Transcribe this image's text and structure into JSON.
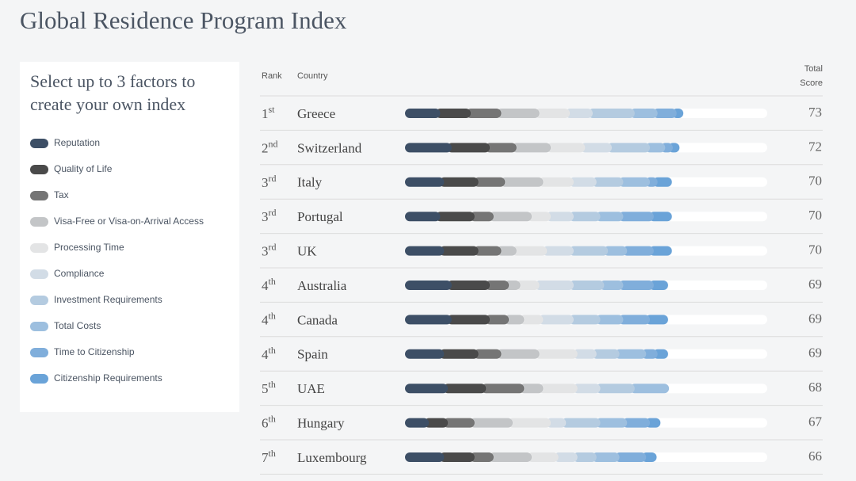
{
  "chart_data": {
    "type": "bar",
    "orientation": "horizontal",
    "stacked": true,
    "title": "Global Residence Program Index",
    "panel_title": "Select up to 3 factors to create your own index",
    "columns": {
      "rank": "Rank",
      "country": "Country",
      "total": [
        "Total",
        "Score"
      ]
    },
    "categories": [
      "Greece",
      "Switzerland",
      "Italy",
      "Portugal",
      "UK",
      "Australia",
      "Canada",
      "Spain",
      "UAE",
      "Hungary",
      "Luxembourg"
    ],
    "ranks": [
      "1st",
      "2nd",
      "3rd",
      "3rd",
      "3rd",
      "4th",
      "4th",
      "4th",
      "5th",
      "6th",
      "7th"
    ],
    "totals": [
      73,
      72,
      70,
      70,
      70,
      69,
      69,
      69,
      68,
      67,
      66
    ],
    "xlim": [
      0,
      95
    ],
    "series": [
      {
        "name": "Reputation",
        "color": "#3d4f66",
        "values": [
          8,
          11,
          9,
          8,
          9,
          11,
          11,
          9,
          10,
          5,
          9
        ]
      },
      {
        "name": "Quality of Life",
        "color": "#4a4a4a",
        "values": [
          8,
          10,
          9,
          9,
          9,
          10,
          10,
          9,
          10,
          5,
          8
        ]
      },
      {
        "name": "Tax",
        "color": "#757575",
        "values": [
          8,
          7,
          7,
          5,
          6,
          5,
          5,
          6,
          10,
          7,
          5
        ]
      },
      {
        "name": "Visa-Free or Visa-on-Arrival Access",
        "color": "#c3c5c7",
        "values": [
          10,
          9,
          10,
          10,
          4,
          3,
          4,
          10,
          5,
          10,
          10
        ]
      },
      {
        "name": "Processing Time",
        "color": "#e3e4e5",
        "values": [
          8,
          9,
          8,
          5,
          8,
          5,
          5,
          10,
          9,
          10,
          7
        ]
      },
      {
        "name": "Compliance",
        "color": "#d2dce6",
        "values": [
          6,
          7,
          6,
          6,
          7,
          9,
          8,
          5,
          6,
          4,
          5
        ]
      },
      {
        "name": "Investment Requirements",
        "color": "#b4cbe0",
        "values": [
          11,
          10,
          7,
          7,
          9,
          8,
          7,
          6,
          9,
          9,
          5
        ]
      },
      {
        "name": "Total Costs",
        "color": "#9dbfdf",
        "values": [
          6,
          4,
          7,
          6,
          5,
          5,
          6,
          7,
          9,
          7,
          6
        ]
      },
      {
        "name": "Time to Citizenship",
        "color": "#80aedb",
        "values": [
          5,
          2,
          2,
          8,
          7,
          8,
          7,
          3,
          0,
          6,
          7
        ]
      },
      {
        "name": "Citizenship Requirements",
        "color": "#6aa3d8",
        "values": [
          3,
          3,
          5,
          6,
          6,
          5,
          6,
          4,
          0,
          4,
          4
        ]
      }
    ]
  }
}
